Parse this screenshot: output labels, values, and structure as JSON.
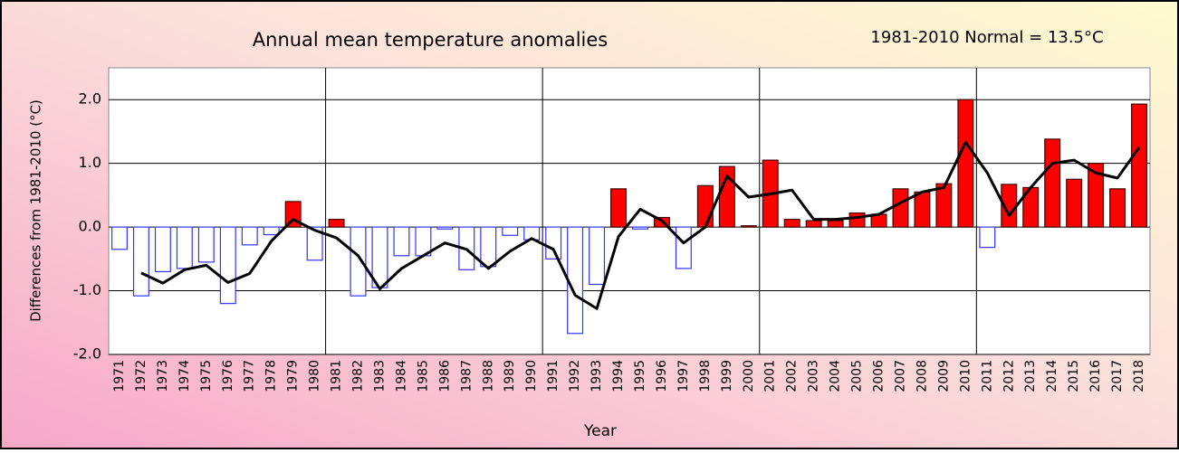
{
  "chart_data": {
    "type": "bar",
    "title": "Annual mean temperature anomalies",
    "annotation": "1981-2010 Normal = 13.5°C",
    "y_label": "Differences  from  1981-2010  (°C)",
    "x_label": "Year",
    "categories": [
      "1971",
      "1972",
      "1973",
      "1974",
      "1975",
      "1976",
      "1977",
      "1978",
      "1979",
      "1980",
      "1981",
      "1982",
      "1983",
      "1984",
      "1985",
      "1986",
      "1987",
      "1988",
      "1989",
      "1990",
      "1991",
      "1992",
      "1993",
      "1994",
      "1995",
      "1996",
      "1997",
      "1998",
      "1999",
      "2000",
      "2001",
      "2002",
      "2003",
      "2004",
      "2005",
      "2006",
      "2007",
      "2008",
      "2009",
      "2010",
      "2011",
      "2012",
      "2013",
      "2014",
      "2015",
      "2016",
      "2017",
      "2018"
    ],
    "series": [
      {
        "type": "bar",
        "color": "#ff0000",
        "negative_color": "#ffffff",
        "negative_edge_color": "#3333ff",
        "values": [
          -0.35,
          -1.08,
          -0.7,
          -0.65,
          -0.55,
          -1.2,
          -0.28,
          -0.12,
          0.4,
          -0.52,
          0.12,
          -1.08,
          -0.95,
          -0.45,
          -0.45,
          -0.03,
          -0.67,
          -0.62,
          -0.13,
          -0.2,
          -0.5,
          -1.67,
          -0.9,
          0.6,
          -0.03,
          0.15,
          -0.65,
          0.65,
          0.95,
          0.02,
          1.05,
          0.12,
          0.1,
          0.1,
          0.22,
          0.2,
          0.6,
          0.55,
          0.68,
          2.0,
          -0.32,
          0.67,
          0.62,
          1.38,
          0.75,
          1.0,
          0.6,
          1.93
        ]
      },
      {
        "type": "line",
        "color": "#000000",
        "values": [
          null,
          -0.72,
          -0.88,
          -0.67,
          -0.6,
          -0.87,
          -0.73,
          -0.22,
          0.12,
          -0.05,
          -0.17,
          -0.45,
          -0.97,
          -0.65,
          -0.45,
          -0.25,
          -0.35,
          -0.65,
          -0.38,
          -0.18,
          -0.35,
          -1.07,
          -1.28,
          -0.15,
          0.28,
          0.1,
          -0.25,
          0.0,
          0.8,
          0.47,
          0.52,
          0.58,
          0.12,
          0.12,
          0.15,
          0.2,
          0.38,
          0.55,
          0.62,
          1.33,
          0.85,
          0.18,
          0.62,
          1.0,
          1.05,
          0.85,
          0.77,
          1.25
        ]
      }
    ],
    "ylim": [
      -2,
      2.5
    ],
    "yticks": [
      {
        "value": -2,
        "label": "-2.0"
      },
      {
        "value": -1,
        "label": "-1.0"
      },
      {
        "value": 0,
        "label": "0.0"
      },
      {
        "value": 1,
        "label": "1.0"
      },
      {
        "value": 2,
        "label": "2.0"
      }
    ],
    "grid": true,
    "vertical_grid_every": 10
  }
}
